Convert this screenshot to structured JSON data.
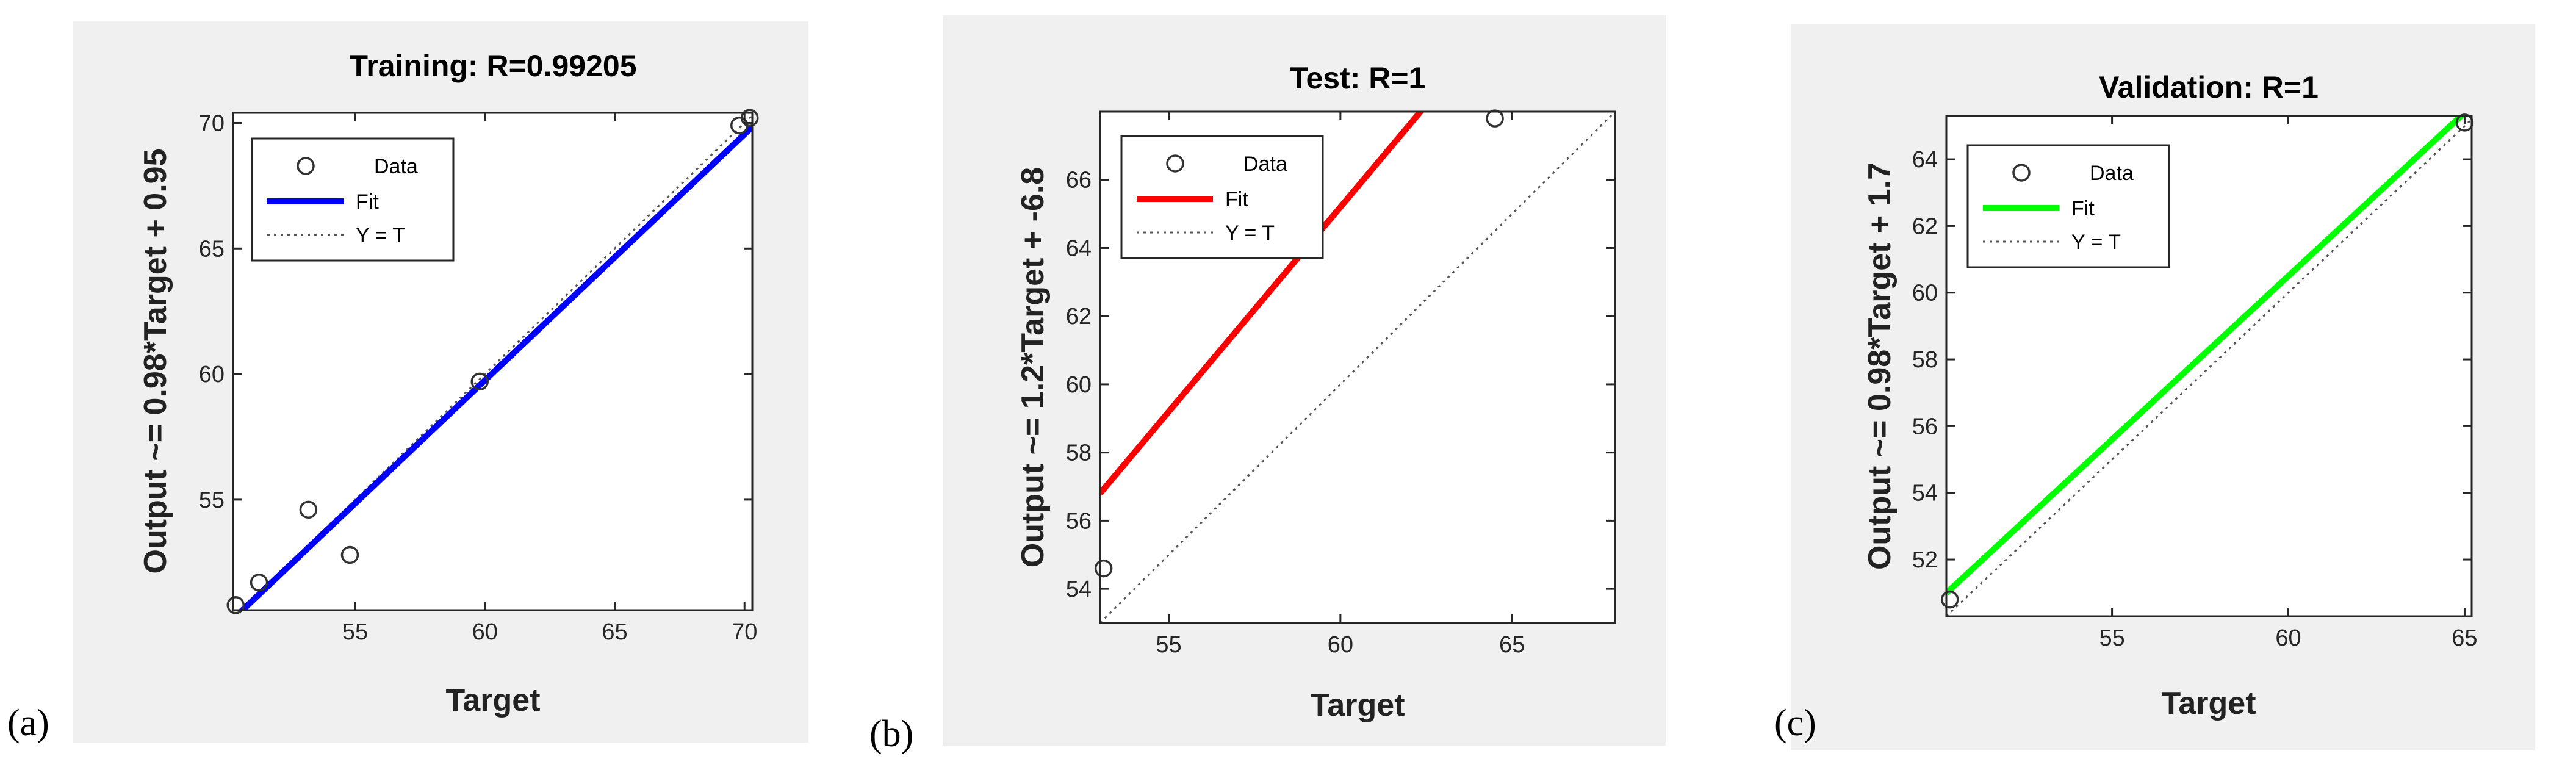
{
  "panel_labels": {
    "a": "(a)",
    "b": "(b)",
    "c": "(c)"
  },
  "legend_labels": [
    "Data",
    "Fit",
    "Y = T"
  ],
  "chart_data": [
    {
      "type": "scatter",
      "title": "Training: R=0.99205",
      "xlabel": "Target",
      "ylabel": "Output ~= 0.98*Target + 0.95",
      "xlim": [
        50.3,
        70.3
      ],
      "ylim": [
        50.6,
        70.4
      ],
      "xticks": [
        55,
        60,
        65,
        70
      ],
      "yticks": [
        55,
        60,
        65,
        70
      ],
      "points": [
        [
          50.4,
          50.8
        ],
        [
          51.3,
          51.7
        ],
        [
          53.2,
          54.6
        ],
        [
          54.8,
          52.8
        ],
        [
          59.8,
          59.7
        ],
        [
          69.8,
          69.9
        ],
        [
          70.2,
          70.2
        ]
      ],
      "fit": {
        "slope": 0.98,
        "intercept": 0.95
      },
      "fit_color": "#0000ff",
      "legend": "top-left",
      "grid": false
    },
    {
      "type": "scatter",
      "title": "Test: R=1",
      "xlabel": "Target",
      "ylabel": "Output ~= 1.2*Target + -6.8",
      "xlim": [
        53,
        68
      ],
      "ylim": [
        53,
        68
      ],
      "xticks": [
        55,
        60,
        65
      ],
      "yticks": [
        54,
        56,
        58,
        60,
        62,
        64,
        66
      ],
      "points": [
        [
          53.1,
          54.6
        ],
        [
          64.5,
          67.8
        ]
      ],
      "fit": {
        "slope": 1.2,
        "intercept": -6.8
      },
      "fit_color": "#ff0000",
      "legend": "top-left",
      "grid": false
    },
    {
      "type": "scatter",
      "title": "Validation: R=1",
      "xlabel": "Target",
      "ylabel": "Output ~= 0.98*Target + 1.7",
      "xlim": [
        50.3,
        65.2
      ],
      "ylim": [
        50.3,
        65.3
      ],
      "xticks": [
        55,
        60,
        65
      ],
      "yticks": [
        52,
        54,
        56,
        58,
        60,
        62,
        64
      ],
      "points": [
        [
          50.4,
          50.8
        ],
        [
          65.0,
          65.1
        ]
      ],
      "fit": {
        "slope": 0.98,
        "intercept": 1.7
      },
      "fit_color": "#00ff00",
      "legend": "top-left",
      "grid": false
    }
  ]
}
